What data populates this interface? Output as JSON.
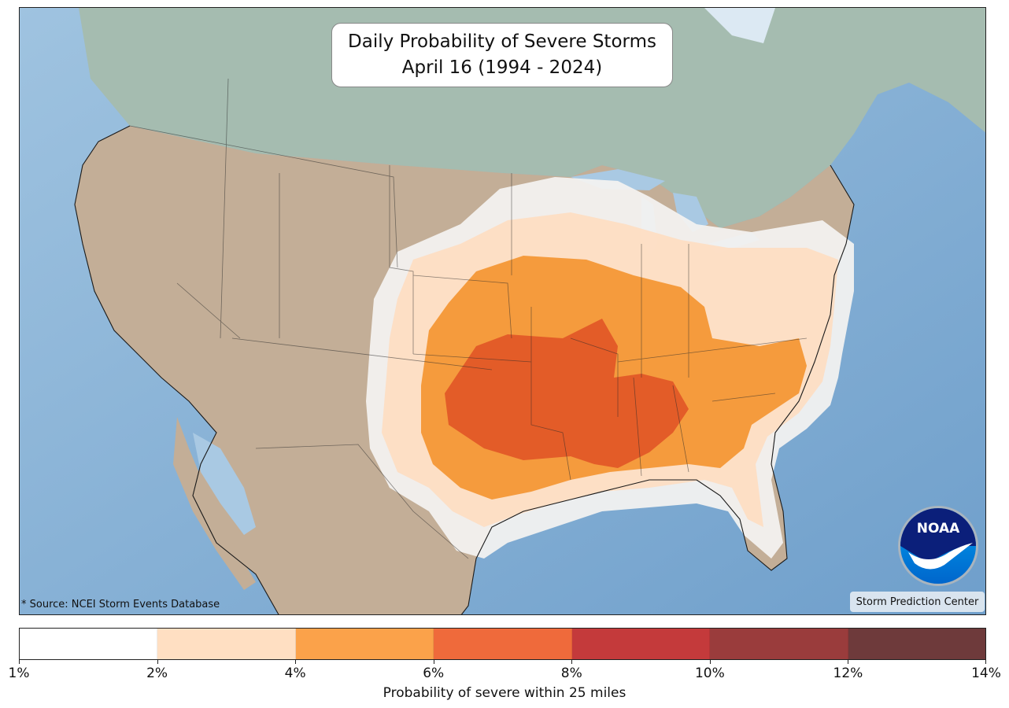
{
  "title": {
    "line1": "Daily Probability of Severe Storms",
    "line2": "April 16 (1994 - 2024)"
  },
  "source_note": "* Source: NCEI Storm Events Database",
  "credit": "Storm Prediction Center",
  "logo": {
    "icon": "noaa-logo",
    "text": "NOAA"
  },
  "colorbar": {
    "caption": "Probability of severe within 25 miles",
    "ticks": [
      "1%",
      "2%",
      "4%",
      "6%",
      "8%",
      "10%",
      "12%",
      "14%"
    ],
    "colors": [
      "#ffffff",
      "#ffdfc2",
      "#fba24a",
      "#ef6a3b",
      "#c43a3b",
      "#9a3c3c",
      "#6e3a3b"
    ]
  },
  "map": {
    "ocean_color": "#8fb6d8",
    "land_color": "#c2b09c",
    "canada_color": "#a6bdb2",
    "contour_levels": [
      "1%",
      "2%",
      "4%",
      "6%"
    ]
  }
}
